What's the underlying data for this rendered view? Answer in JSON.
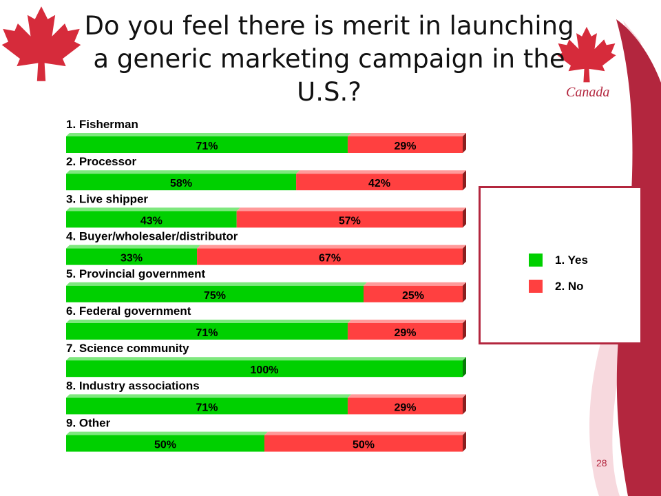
{
  "slide": {
    "title": "Do you feel there is merit in launching a generic marketing campaign in the U.S.?",
    "brand_text": "Canada",
    "page_number": "28"
  },
  "colors": {
    "yes": "#00d000",
    "no": "#ff4040",
    "brand_red": "#b3263e"
  },
  "legend": {
    "yes_label": "1. Yes",
    "no_label": "2. No"
  },
  "chart_data": {
    "type": "bar",
    "orientation": "horizontal",
    "stacked": true,
    "percent_stacked": true,
    "categories": [
      "1. Fisherman",
      "2. Processor",
      "3. Live shipper",
      "4. Buyer/wholesaler/distributor",
      "5. Provincial government",
      "6. Federal government",
      "7. Science community",
      "8. Industry associations",
      "9. Other"
    ],
    "series": [
      {
        "name": "1. Yes",
        "values": [
          71,
          58,
          43,
          33,
          75,
          71,
          100,
          71,
          50
        ]
      },
      {
        "name": "2. No",
        "values": [
          29,
          42,
          57,
          67,
          25,
          29,
          0,
          29,
          50
        ]
      }
    ],
    "value_labels": [
      [
        "71%",
        "29%"
      ],
      [
        "58%",
        "42%"
      ],
      [
        "43%",
        "57%"
      ],
      [
        "33%",
        "67%"
      ],
      [
        "75%",
        "25%"
      ],
      [
        "71%",
        "29%"
      ],
      [
        "100%",
        ""
      ],
      [
        "71%",
        "29%"
      ],
      [
        "50%",
        "50%"
      ]
    ],
    "xlim": [
      0,
      100
    ],
    "legend_position": "right",
    "grid": false
  }
}
